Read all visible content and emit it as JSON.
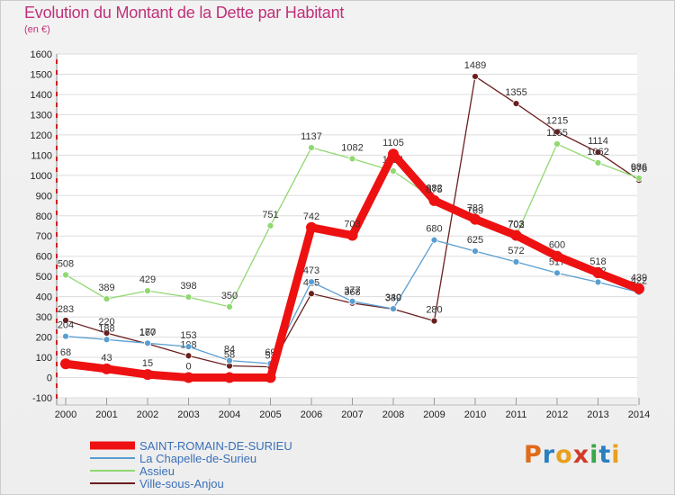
{
  "title": "Evolution du Montant de la Dette par Habitant",
  "unit": "(en €)",
  "logo": {
    "letters": [
      "P",
      "r",
      "o",
      "x",
      "i",
      "t",
      "i"
    ],
    "colors": [
      "#e06a1a",
      "#2a7fc0",
      "#e8a020",
      "#d23a2a",
      "#3aa64a",
      "#2a7fc0",
      "#e8a020"
    ]
  },
  "chart_data": {
    "type": "line",
    "x": [
      2000,
      2001,
      2002,
      2003,
      2004,
      2005,
      2006,
      2007,
      2008,
      2009,
      2010,
      2011,
      2012,
      2013,
      2014
    ],
    "ylim": [
      -100,
      1600
    ],
    "yticks": [
      -100,
      0,
      100,
      200,
      300,
      400,
      500,
      600,
      700,
      800,
      900,
      1000,
      1100,
      1200,
      1300,
      1400,
      1500,
      1600
    ],
    "grid": "horizontal",
    "legend_position": "bottom-left",
    "series": [
      {
        "name": "Ville-sous-Anjou",
        "color": "#6b1f1f",
        "values": [
          283,
          220,
          167,
          108,
          58,
          53,
          415,
          368,
          339,
          280,
          1489,
          1355,
          1215,
          1114,
          976
        ],
        "labels": [
          "283",
          "220",
          "167",
          "108",
          "58",
          "53",
          "415",
          "368",
          "339",
          "280",
          "1489",
          "1355",
          "1215",
          "1114",
          "976"
        ]
      },
      {
        "name": "La Chapelle-de-Surieu",
        "color": "#5a9ed0",
        "values": [
          204,
          188,
          170,
          153,
          84,
          69,
          473,
          377,
          340,
          680,
          625,
          572,
          517,
          472,
          422
        ],
        "labels": [
          "204",
          "188",
          "170",
          "153",
          "84",
          "69",
          "473",
          "377",
          "340",
          "680",
          "625",
          "572",
          "517",
          "472",
          "422"
        ]
      },
      {
        "name": "Assieu",
        "color": "#90d870",
        "values": [
          508,
          389,
          429,
          398,
          350,
          751,
          1137,
          1082,
          1021,
          882,
          769,
          702,
          1155,
          1062,
          986
        ],
        "labels": [
          "508",
          "389",
          "429",
          "398",
          "350",
          "751",
          "1137",
          "1082",
          "1021",
          "882",
          "769",
          "702",
          "1155",
          "1062",
          "986"
        ]
      },
      {
        "name": "SAINT-ROMAIN-DE-SURIEU",
        "color": "#ee1111",
        "values": [
          68,
          43,
          15,
          0,
          0,
          0,
          742,
          703,
          1105,
          875,
          783,
          703,
          600,
          518,
          439
        ],
        "labels": [
          "68",
          "43",
          "15",
          "0",
          "",
          "",
          "742",
          "703",
          "1105",
          "875",
          "783",
          "703",
          "600",
          "518",
          "439"
        ]
      }
    ],
    "legend": [
      {
        "name": "SAINT-ROMAIN-DE-SURIEU",
        "color": "#ee1111",
        "thick": true
      },
      {
        "name": "La Chapelle-de-Surieu",
        "color": "#5a9ed0",
        "thick": false
      },
      {
        "name": "Assieu",
        "color": "#90d870",
        "thick": false
      },
      {
        "name": "Ville-sous-Anjou",
        "color": "#6b1f1f",
        "thick": false
      }
    ]
  }
}
